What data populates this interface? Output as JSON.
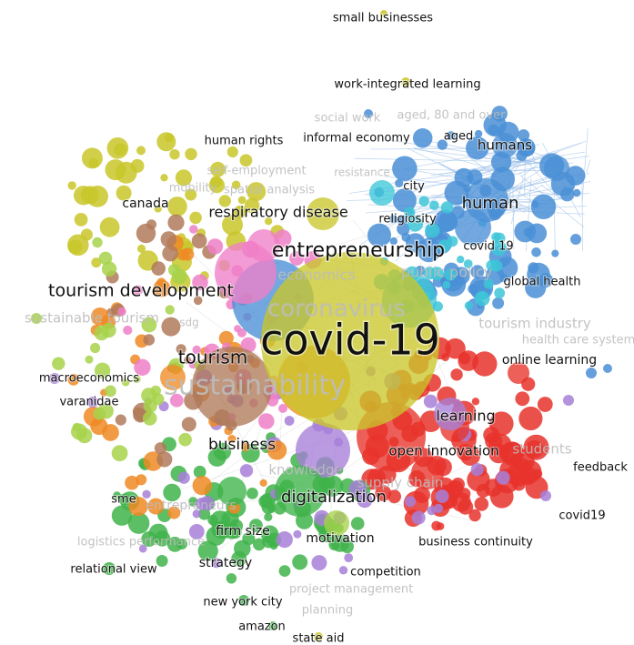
{
  "map": {
    "type": "keyword co-occurrence network",
    "clusters": [
      {
        "id": "red",
        "color": "#e8332b"
      },
      {
        "id": "green",
        "color": "#3fb34a"
      },
      {
        "id": "blue",
        "color": "#4a8fd6"
      },
      {
        "id": "yellow",
        "color": "#c9c72a"
      },
      {
        "id": "purple",
        "color": "#a77fd8"
      },
      {
        "id": "cyan",
        "color": "#3ec6d8"
      },
      {
        "id": "orange",
        "color": "#ef8a24"
      },
      {
        "id": "brown",
        "color": "#b07a5a"
      },
      {
        "id": "pink",
        "color": "#ef7fc8"
      },
      {
        "id": "lime",
        "color": "#a7d24a"
      }
    ],
    "labels": [
      {
        "text": "small businesses",
        "style": "dark"
      },
      {
        "text": "work-integrated learning",
        "style": "dark"
      },
      {
        "text": "social work",
        "style": "faded"
      },
      {
        "text": "aged, 80 and over",
        "style": "faded"
      },
      {
        "text": "aged",
        "style": "dark"
      },
      {
        "text": "humans",
        "style": "dark"
      },
      {
        "text": "informal economy",
        "style": "dark"
      },
      {
        "text": "human rights",
        "style": "dark"
      },
      {
        "text": "self-employment",
        "style": "faded"
      },
      {
        "text": "resistance",
        "style": "faded"
      },
      {
        "text": "mobility",
        "style": "faded"
      },
      {
        "text": "spatial analysis",
        "style": "faded"
      },
      {
        "text": "city",
        "style": "dark"
      },
      {
        "text": "human",
        "style": "dark"
      },
      {
        "text": "canada",
        "style": "dark"
      },
      {
        "text": "respiratory disease",
        "style": "dark"
      },
      {
        "text": "religiosity",
        "style": "dark"
      },
      {
        "text": "entrepreneurship",
        "style": "dark"
      },
      {
        "text": "covid 19",
        "style": "dark"
      },
      {
        "text": "economics",
        "style": "faded"
      },
      {
        "text": "public policy",
        "style": "faded"
      },
      {
        "text": "global health",
        "style": "dark"
      },
      {
        "text": "tourism development",
        "style": "dark"
      },
      {
        "text": "coronavirus",
        "style": "faded"
      },
      {
        "text": "sustainable tourism",
        "style": "faded"
      },
      {
        "text": "sdg",
        "style": "faded"
      },
      {
        "text": "tourism industry",
        "style": "faded"
      },
      {
        "text": "health care system",
        "style": "faded"
      },
      {
        "text": "covid-19",
        "style": "dark"
      },
      {
        "text": "tourism",
        "style": "dark"
      },
      {
        "text": "online learning",
        "style": "dark"
      },
      {
        "text": "macroeconomics",
        "style": "dark"
      },
      {
        "text": "sustainability",
        "style": "faded"
      },
      {
        "text": "varanidae",
        "style": "dark"
      },
      {
        "text": "learning",
        "style": "dark"
      },
      {
        "text": "business",
        "style": "dark"
      },
      {
        "text": "knowledge",
        "style": "faded"
      },
      {
        "text": "open innovation",
        "style": "dark"
      },
      {
        "text": "students",
        "style": "faded"
      },
      {
        "text": "feedback",
        "style": "dark"
      },
      {
        "text": "supply chain",
        "style": "faded"
      },
      {
        "text": "digitalization",
        "style": "dark"
      },
      {
        "text": "sme",
        "style": "dark"
      },
      {
        "text": "entrepreneurs",
        "style": "faded"
      },
      {
        "text": "covid19",
        "style": "dark"
      },
      {
        "text": "firm size",
        "style": "dark"
      },
      {
        "text": "logistics performance",
        "style": "faded"
      },
      {
        "text": "motivation",
        "style": "dark"
      },
      {
        "text": "business continuity",
        "style": "dark"
      },
      {
        "text": "relational view",
        "style": "dark"
      },
      {
        "text": "strategy",
        "style": "dark"
      },
      {
        "text": "competition",
        "style": "dark"
      },
      {
        "text": "project management",
        "style": "faded"
      },
      {
        "text": "new york city",
        "style": "dark"
      },
      {
        "text": "planning",
        "style": "faded"
      },
      {
        "text": "amazon",
        "style": "dark"
      },
      {
        "text": "state aid",
        "style": "dark"
      }
    ]
  }
}
